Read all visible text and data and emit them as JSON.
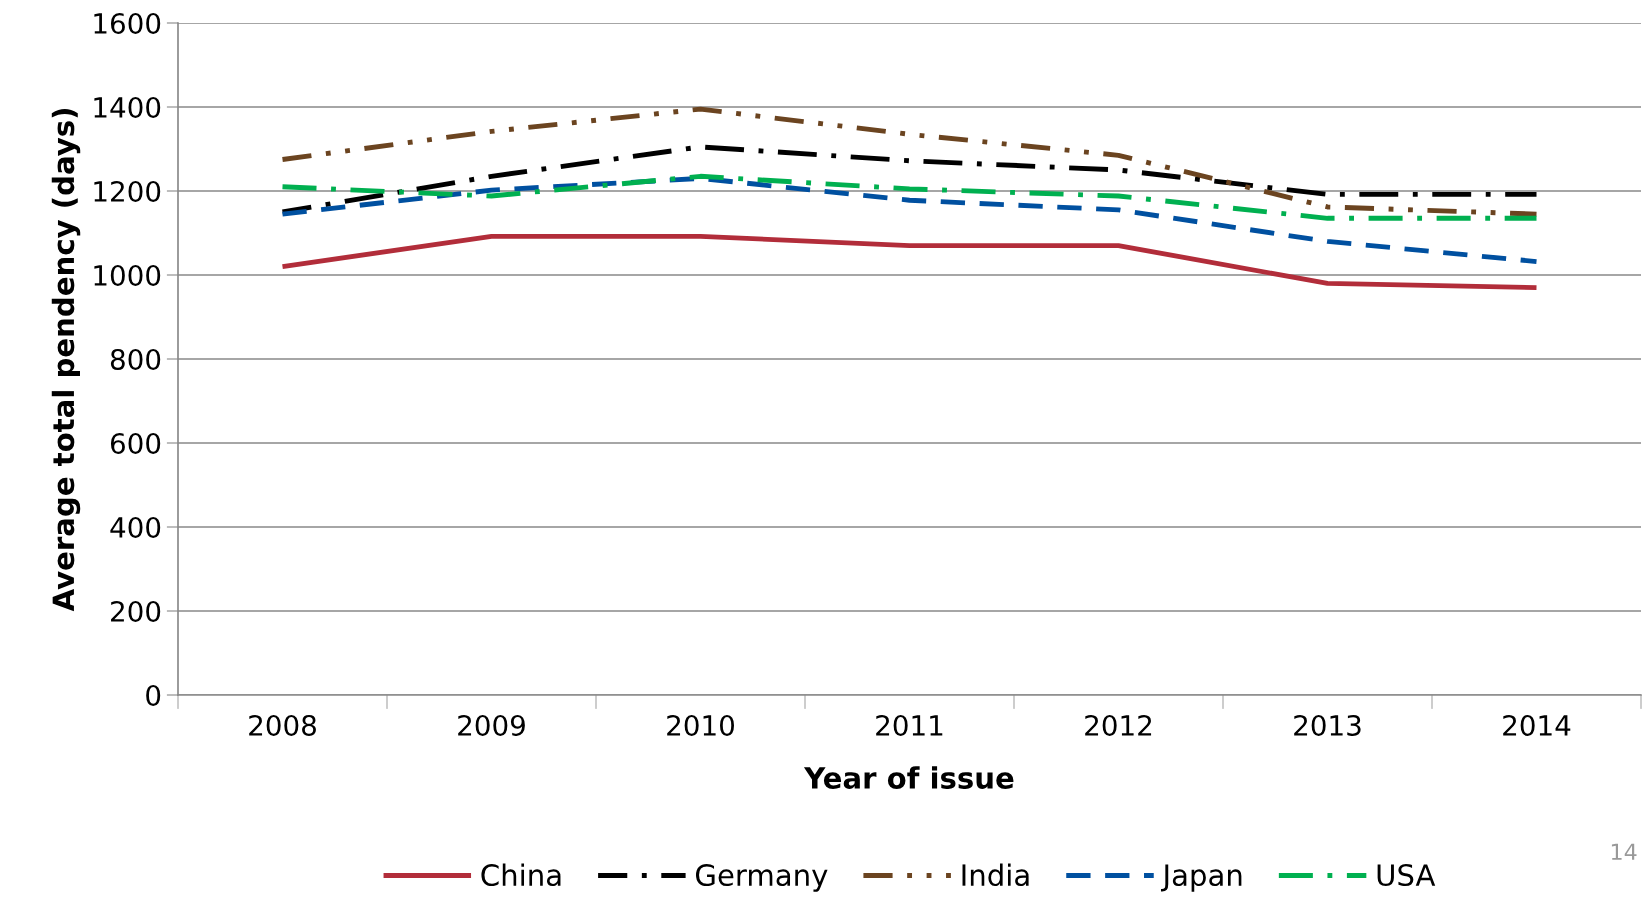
{
  "chart_data": {
    "type": "line",
    "xlabel": "Year of issue",
    "ylabel": "Average total pendency (days)",
    "categories": [
      "2008",
      "2009",
      "2010",
      "2011",
      "2012",
      "2013",
      "2014"
    ],
    "series": [
      {
        "name": "China",
        "color": "#b22d3a",
        "line_style": "solid",
        "values": [
          1020,
          1092,
          1092,
          1070,
          1070,
          980,
          970
        ]
      },
      {
        "name": "Germany",
        "color": "#000000",
        "line_style": "dashdot",
        "values": [
          1150,
          1235,
          1305,
          1272,
          1250,
          1192,
          1192
        ]
      },
      {
        "name": "India",
        "color": "#6b4420",
        "line_style": "dashdotdot",
        "values": [
          1275,
          1342,
          1395,
          1335,
          1285,
          1162,
          1145
        ]
      },
      {
        "name": "Japan",
        "color": "#0050a0",
        "line_style": "dashed",
        "values": [
          1145,
          1202,
          1230,
          1178,
          1155,
          1080,
          1032
        ]
      },
      {
        "name": "USA",
        "color": "#00b050",
        "line_style": "longdash",
        "values": [
          1210,
          1188,
          1235,
          1205,
          1188,
          1135,
          1135
        ]
      }
    ],
    "ylim": [
      0,
      1600
    ],
    "yticks": [
      0,
      200,
      400,
      600,
      800,
      1000,
      1200,
      1400,
      1600
    ],
    "grid": "y",
    "legend": "bottom",
    "marker": "none",
    "annotations": [
      "14"
    ]
  }
}
